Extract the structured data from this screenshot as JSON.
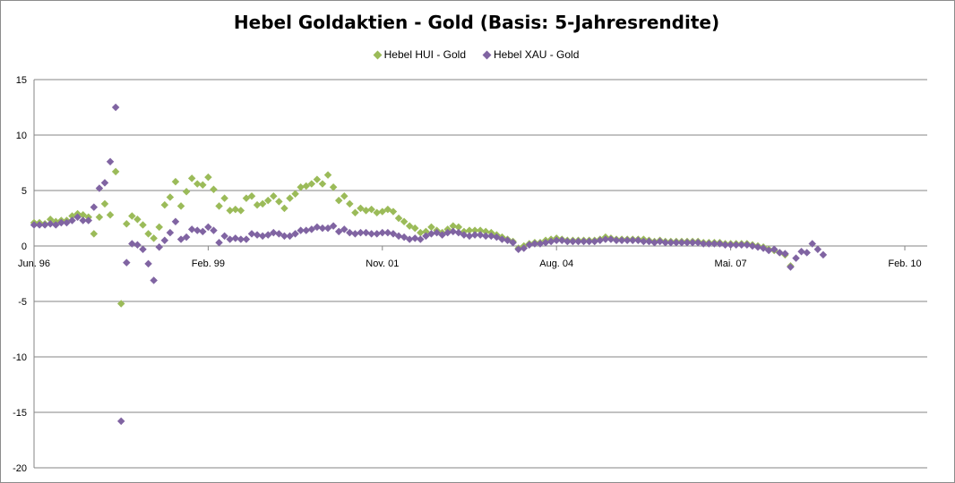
{
  "chart_data": {
    "type": "scatter",
    "title": "Hebel Goldaktien - Gold (Basis: 5-Jahresrendite)",
    "xlabel": "",
    "ylabel": "",
    "ylim": [
      -20,
      15
    ],
    "yticks": [
      15,
      10,
      5,
      0,
      -5,
      -10,
      -15,
      -20
    ],
    "xticks": [
      "Jun. 96",
      "Feb. 99",
      "Nov. 01",
      "Aug. 04",
      "Mai. 07",
      "Feb. 10"
    ],
    "x_unit": "month index since Jun. 96 (ticks every 32 months)",
    "grid": true,
    "legend": "top-center",
    "series": [
      {
        "name": "Hebel HUI - Gold",
        "color": "#9bbb59",
        "points": [
          [
            0,
            2.1
          ],
          [
            1,
            2.1
          ],
          [
            2,
            2.0
          ],
          [
            3,
            2.4
          ],
          [
            4,
            2.2
          ],
          [
            5,
            2.3
          ],
          [
            6,
            2.3
          ],
          [
            7,
            2.7
          ],
          [
            8,
            2.9
          ],
          [
            9,
            2.8
          ],
          [
            10,
            2.6
          ],
          [
            11,
            1.1
          ],
          [
            12,
            2.6
          ],
          [
            13,
            3.8
          ],
          [
            14,
            2.8
          ],
          [
            15,
            6.7
          ],
          [
            16,
            -5.2
          ],
          [
            17,
            2.0
          ],
          [
            18,
            2.7
          ],
          [
            19,
            2.4
          ],
          [
            20,
            1.9
          ],
          [
            21,
            1.1
          ],
          [
            22,
            0.7
          ],
          [
            23,
            1.7
          ],
          [
            24,
            3.7
          ],
          [
            25,
            4.4
          ],
          [
            26,
            5.8
          ],
          [
            27,
            3.6
          ],
          [
            28,
            4.9
          ],
          [
            29,
            6.1
          ],
          [
            30,
            5.6
          ],
          [
            31,
            5.5
          ],
          [
            32,
            6.2
          ],
          [
            33,
            5.1
          ],
          [
            34,
            3.6
          ],
          [
            35,
            4.3
          ],
          [
            36,
            3.2
          ],
          [
            37,
            3.3
          ],
          [
            38,
            3.2
          ],
          [
            39,
            4.3
          ],
          [
            40,
            4.5
          ],
          [
            41,
            3.7
          ],
          [
            42,
            3.8
          ],
          [
            43,
            4.1
          ],
          [
            44,
            4.5
          ],
          [
            45,
            4.0
          ],
          [
            46,
            3.4
          ],
          [
            47,
            4.3
          ],
          [
            48,
            4.7
          ],
          [
            49,
            5.3
          ],
          [
            50,
            5.4
          ],
          [
            51,
            5.6
          ],
          [
            52,
            6.0
          ],
          [
            53,
            5.6
          ],
          [
            54,
            6.4
          ],
          [
            55,
            5.3
          ],
          [
            56,
            4.1
          ],
          [
            57,
            4.5
          ],
          [
            58,
            3.8
          ],
          [
            59,
            3.0
          ],
          [
            60,
            3.4
          ],
          [
            61,
            3.2
          ],
          [
            62,
            3.3
          ],
          [
            63,
            3.0
          ],
          [
            64,
            3.1
          ],
          [
            65,
            3.3
          ],
          [
            66,
            3.1
          ],
          [
            67,
            2.5
          ],
          [
            68,
            2.2
          ],
          [
            69,
            1.8
          ],
          [
            70,
            1.6
          ],
          [
            71,
            1.2
          ],
          [
            72,
            1.3
          ],
          [
            73,
            1.7
          ],
          [
            74,
            1.4
          ],
          [
            75,
            1.2
          ],
          [
            76,
            1.5
          ],
          [
            77,
            1.8
          ],
          [
            78,
            1.7
          ],
          [
            79,
            1.3
          ],
          [
            80,
            1.4
          ],
          [
            81,
            1.4
          ],
          [
            82,
            1.4
          ],
          [
            83,
            1.3
          ],
          [
            84,
            1.2
          ],
          [
            85,
            1.0
          ],
          [
            86,
            0.8
          ],
          [
            87,
            0.6
          ],
          [
            88,
            0.4
          ],
          [
            89,
            -0.2
          ],
          [
            90,
            0.0
          ],
          [
            91,
            0.2
          ],
          [
            92,
            0.3
          ],
          [
            93,
            0.3
          ],
          [
            94,
            0.5
          ],
          [
            95,
            0.6
          ],
          [
            96,
            0.7
          ],
          [
            97,
            0.6
          ],
          [
            98,
            0.5
          ],
          [
            99,
            0.5
          ],
          [
            100,
            0.5
          ],
          [
            101,
            0.5
          ],
          [
            102,
            0.5
          ],
          [
            103,
            0.5
          ],
          [
            104,
            0.6
          ],
          [
            105,
            0.8
          ],
          [
            106,
            0.7
          ],
          [
            107,
            0.6
          ],
          [
            108,
            0.6
          ],
          [
            109,
            0.6
          ],
          [
            110,
            0.6
          ],
          [
            111,
            0.6
          ],
          [
            112,
            0.6
          ],
          [
            113,
            0.5
          ],
          [
            114,
            0.4
          ],
          [
            115,
            0.5
          ],
          [
            116,
            0.4
          ],
          [
            117,
            0.4
          ],
          [
            118,
            0.4
          ],
          [
            119,
            0.4
          ],
          [
            120,
            0.4
          ],
          [
            121,
            0.4
          ],
          [
            122,
            0.4
          ],
          [
            123,
            0.3
          ],
          [
            124,
            0.3
          ],
          [
            125,
            0.3
          ],
          [
            126,
            0.3
          ],
          [
            127,
            0.2
          ],
          [
            128,
            0.2
          ],
          [
            129,
            0.2
          ],
          [
            130,
            0.2
          ],
          [
            131,
            0.2
          ],
          [
            132,
            0.1
          ],
          [
            133,
            0.0
          ],
          [
            134,
            -0.1
          ],
          [
            135,
            -0.3
          ],
          [
            136,
            -0.4
          ],
          [
            137,
            -0.6
          ],
          [
            138,
            -0.8
          ],
          [
            139,
            -1.8
          ]
        ]
      },
      {
        "name": "Hebel XAU - Gold",
        "color": "#8064a2",
        "points": [
          [
            0,
            1.9
          ],
          [
            1,
            1.9
          ],
          [
            2,
            1.9
          ],
          [
            3,
            2.0
          ],
          [
            4,
            1.9
          ],
          [
            5,
            2.1
          ],
          [
            6,
            2.1
          ],
          [
            7,
            2.3
          ],
          [
            8,
            2.6
          ],
          [
            9,
            2.3
          ],
          [
            10,
            2.3
          ],
          [
            11,
            3.5
          ],
          [
            12,
            5.2
          ],
          [
            13,
            5.7
          ],
          [
            14,
            7.6
          ],
          [
            15,
            12.5
          ],
          [
            16,
            -15.8
          ],
          [
            17,
            -1.5
          ],
          [
            18,
            0.2
          ],
          [
            19,
            0.1
          ],
          [
            20,
            -0.3
          ],
          [
            21,
            -1.6
          ],
          [
            22,
            -3.1
          ],
          [
            23,
            -0.1
          ],
          [
            24,
            0.5
          ],
          [
            25,
            1.2
          ],
          [
            26,
            2.2
          ],
          [
            27,
            0.6
          ],
          [
            28,
            0.8
          ],
          [
            29,
            1.5
          ],
          [
            30,
            1.4
          ],
          [
            31,
            1.3
          ],
          [
            32,
            1.7
          ],
          [
            33,
            1.4
          ],
          [
            34,
            0.3
          ],
          [
            35,
            0.9
          ],
          [
            36,
            0.6
          ],
          [
            37,
            0.7
          ],
          [
            38,
            0.6
          ],
          [
            39,
            0.6
          ],
          [
            40,
            1.1
          ],
          [
            41,
            1.0
          ],
          [
            42,
            0.9
          ],
          [
            43,
            1.0
          ],
          [
            44,
            1.2
          ],
          [
            45,
            1.1
          ],
          [
            46,
            0.9
          ],
          [
            47,
            0.9
          ],
          [
            48,
            1.1
          ],
          [
            49,
            1.4
          ],
          [
            50,
            1.4
          ],
          [
            51,
            1.5
          ],
          [
            52,
            1.7
          ],
          [
            53,
            1.6
          ],
          [
            54,
            1.6
          ],
          [
            55,
            1.8
          ],
          [
            56,
            1.3
          ],
          [
            57,
            1.5
          ],
          [
            58,
            1.2
          ],
          [
            59,
            1.1
          ],
          [
            60,
            1.2
          ],
          [
            61,
            1.2
          ],
          [
            62,
            1.1
          ],
          [
            63,
            1.1
          ],
          [
            64,
            1.2
          ],
          [
            65,
            1.2
          ],
          [
            66,
            1.1
          ],
          [
            67,
            0.9
          ],
          [
            68,
            0.8
          ],
          [
            69,
            0.6
          ],
          [
            70,
            0.7
          ],
          [
            71,
            0.6
          ],
          [
            72,
            0.9
          ],
          [
            73,
            1.1
          ],
          [
            74,
            1.2
          ],
          [
            75,
            1.0
          ],
          [
            76,
            1.2
          ],
          [
            77,
            1.3
          ],
          [
            78,
            1.2
          ],
          [
            79,
            1.0
          ],
          [
            80,
            0.9
          ],
          [
            81,
            1.0
          ],
          [
            82,
            1.0
          ],
          [
            83,
            0.9
          ],
          [
            84,
            0.9
          ],
          [
            85,
            0.8
          ],
          [
            86,
            0.6
          ],
          [
            87,
            0.5
          ],
          [
            88,
            0.3
          ],
          [
            89,
            -0.3
          ],
          [
            90,
            -0.2
          ],
          [
            91,
            0.1
          ],
          [
            92,
            0.2
          ],
          [
            93,
            0.2
          ],
          [
            94,
            0.3
          ],
          [
            95,
            0.4
          ],
          [
            96,
            0.5
          ],
          [
            97,
            0.5
          ],
          [
            98,
            0.4
          ],
          [
            99,
            0.4
          ],
          [
            100,
            0.4
          ],
          [
            101,
            0.4
          ],
          [
            102,
            0.4
          ],
          [
            103,
            0.4
          ],
          [
            104,
            0.5
          ],
          [
            105,
            0.6
          ],
          [
            106,
            0.6
          ],
          [
            107,
            0.5
          ],
          [
            108,
            0.5
          ],
          [
            109,
            0.5
          ],
          [
            110,
            0.5
          ],
          [
            111,
            0.5
          ],
          [
            112,
            0.4
          ],
          [
            113,
            0.4
          ],
          [
            114,
            0.3
          ],
          [
            115,
            0.4
          ],
          [
            116,
            0.3
          ],
          [
            117,
            0.3
          ],
          [
            118,
            0.3
          ],
          [
            119,
            0.3
          ],
          [
            120,
            0.3
          ],
          [
            121,
            0.3
          ],
          [
            122,
            0.3
          ],
          [
            123,
            0.2
          ],
          [
            124,
            0.2
          ],
          [
            125,
            0.2
          ],
          [
            126,
            0.2
          ],
          [
            127,
            0.1
          ],
          [
            128,
            0.1
          ],
          [
            129,
            0.1
          ],
          [
            130,
            0.1
          ],
          [
            131,
            0.1
          ],
          [
            132,
            0.0
          ],
          [
            133,
            -0.1
          ],
          [
            134,
            -0.2
          ],
          [
            135,
            -0.4
          ],
          [
            136,
            -0.3
          ],
          [
            137,
            -0.6
          ],
          [
            138,
            -0.7
          ],
          [
            139,
            -1.9
          ],
          [
            140,
            -1.1
          ],
          [
            141,
            -0.5
          ],
          [
            142,
            -0.6
          ],
          [
            143,
            0.2
          ],
          [
            144,
            -0.3
          ],
          [
            145,
            -0.8
          ]
        ]
      }
    ]
  }
}
